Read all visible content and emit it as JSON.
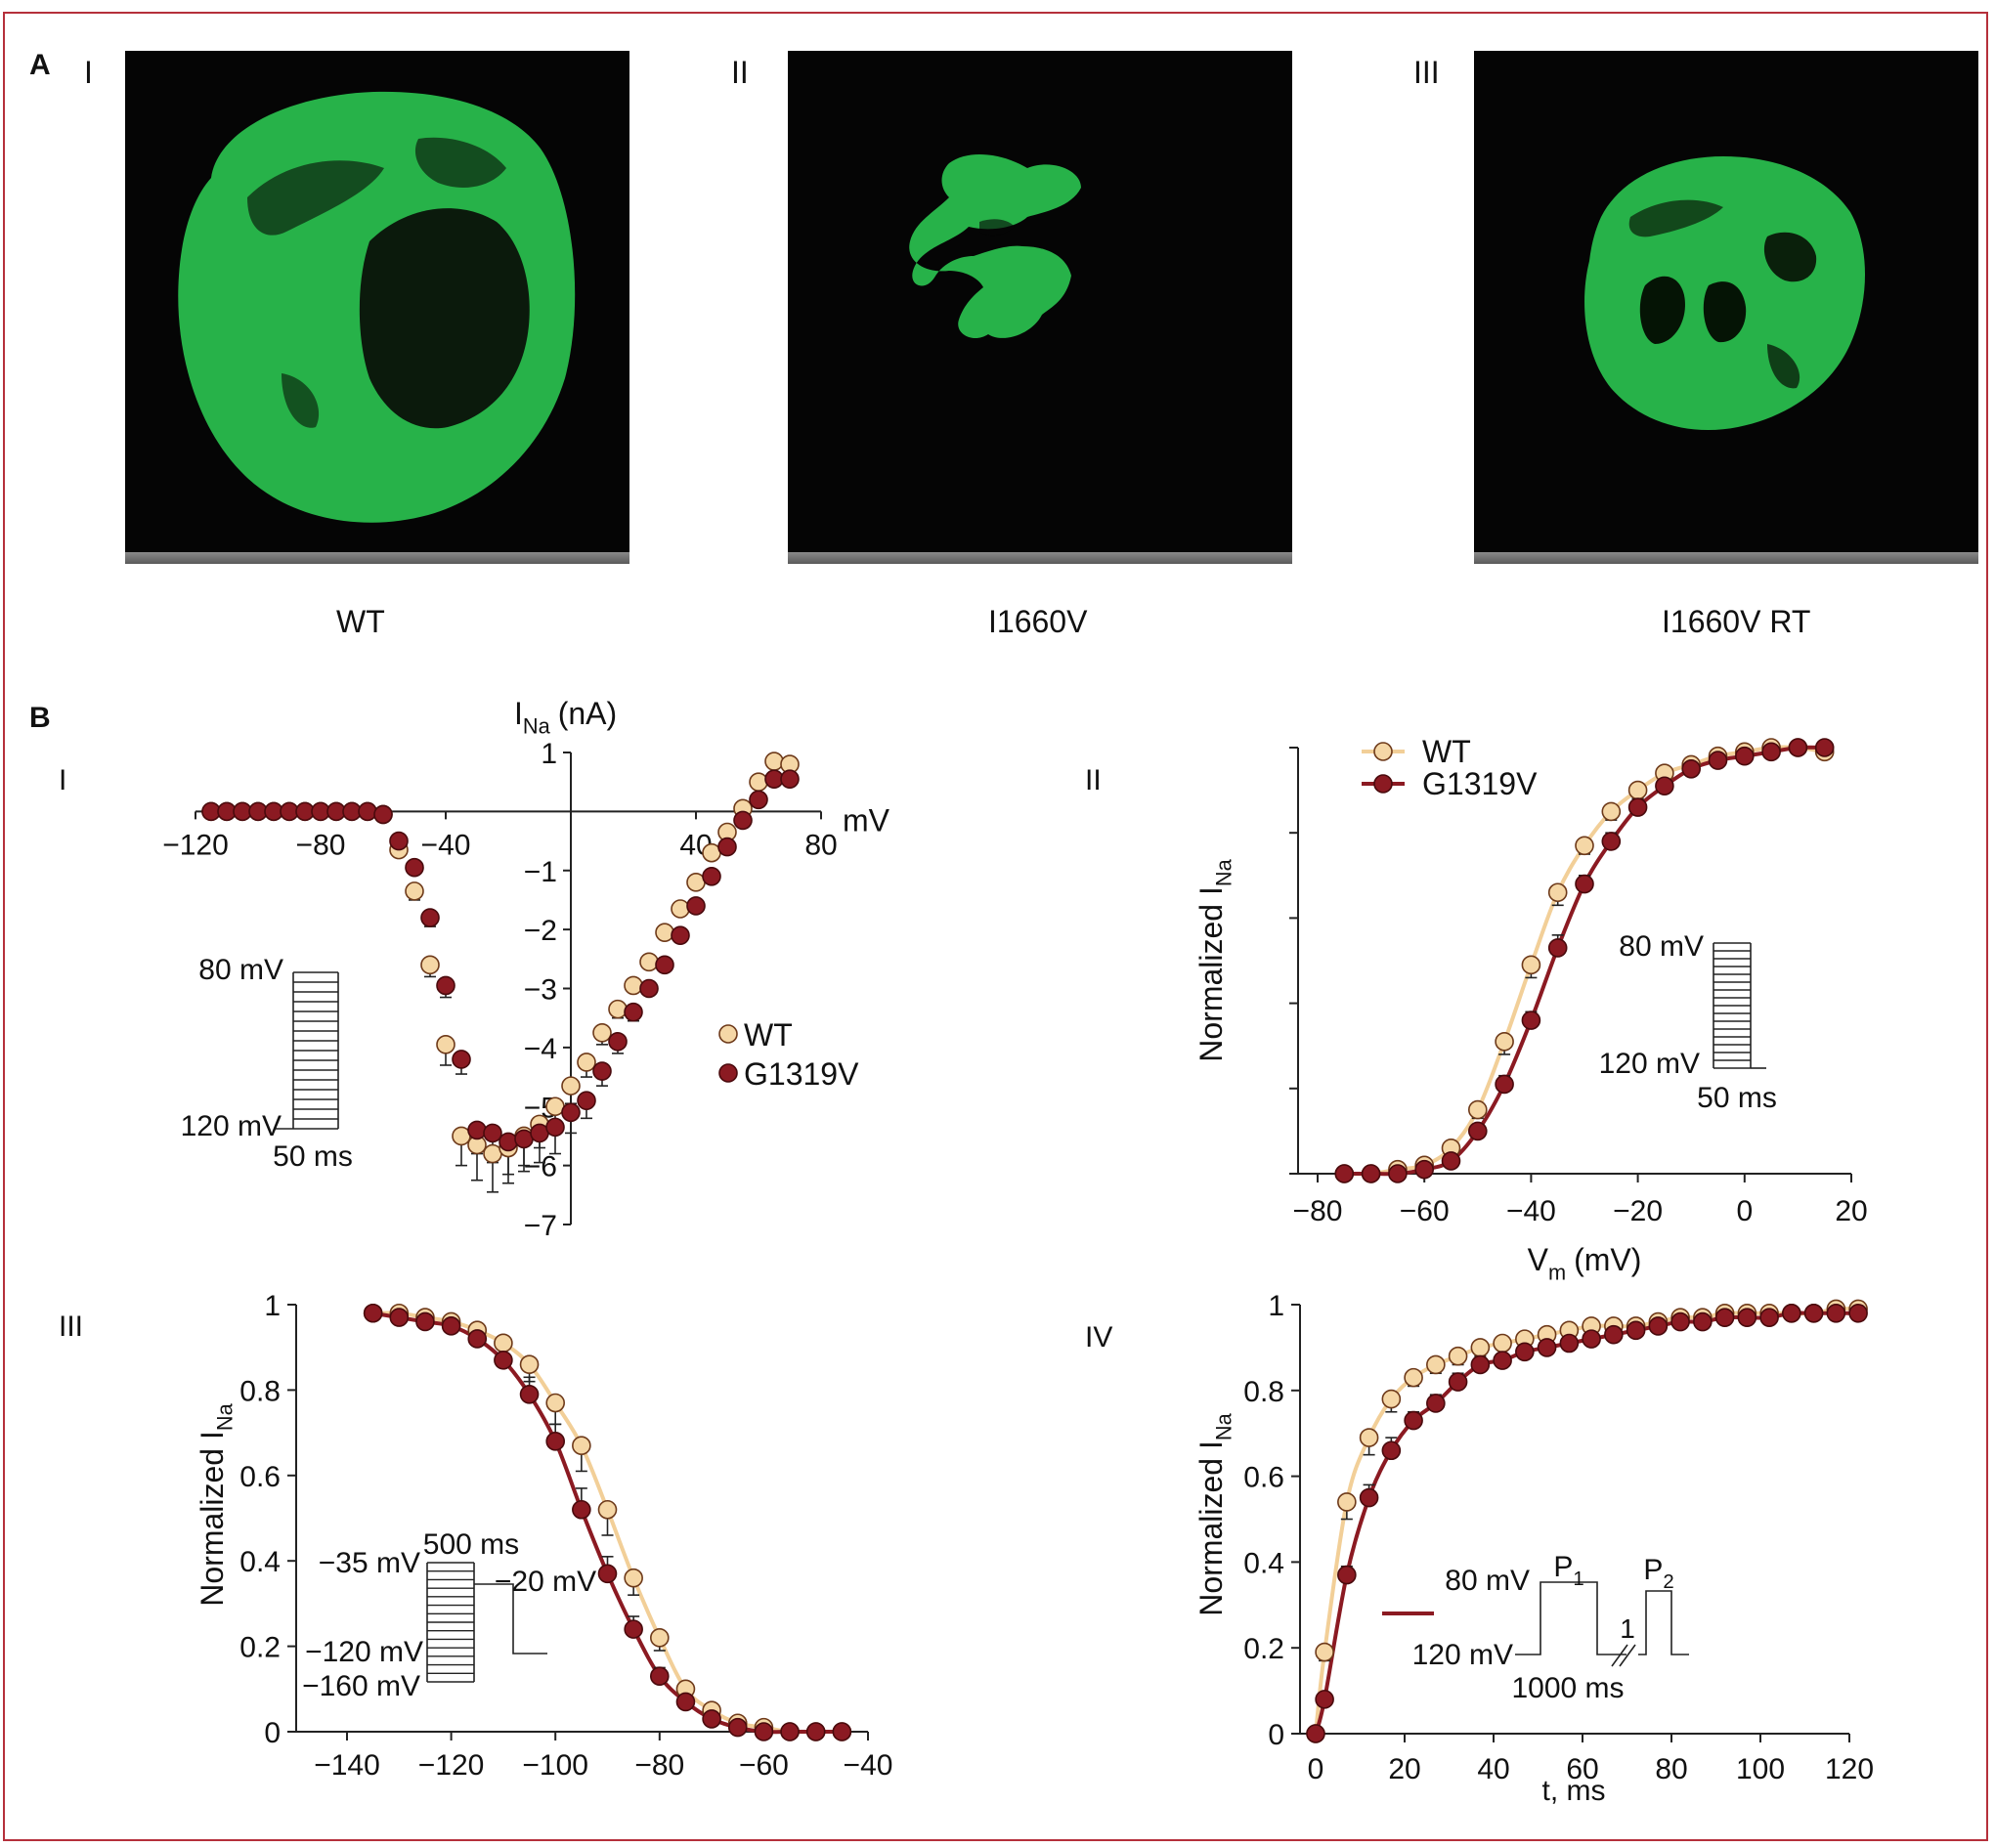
{
  "panel_letters": {
    "a": "A",
    "b": "B"
  },
  "micrographs": [
    {
      "roman": "I",
      "caption": "WT"
    },
    {
      "roman": "II",
      "caption": "I1660V"
    },
    {
      "roman": "III",
      "caption": "I1660V RT"
    }
  ],
  "colors": {
    "wt": "#f5d7a6",
    "wt_edge": "#6e3a1a",
    "wt_line": "#f2cf98",
    "g1319v": "#8b1a22",
    "g1319v_edge": "#4a0a0d",
    "fluor": "#27b249",
    "frame": "#b5303b"
  },
  "chart_data": [
    {
      "id": "BI",
      "type": "scatter",
      "panel": "I",
      "title": "",
      "xlabel": "mV",
      "ylabel": "I",
      "ylabel_sub": "Na",
      "ylabel_unit": "(nA)",
      "xlim": [
        -120,
        80
      ],
      "ylim": [
        -7,
        1
      ],
      "xticks": [
        -120,
        -80,
        -40,
        40,
        80
      ],
      "xticklabels": [
        "−120",
        "−80",
        "−40",
        "40",
        "80"
      ],
      "yticks": [
        1,
        -1,
        -2,
        -3,
        -4,
        -5,
        -6,
        -7
      ],
      "yticklabels": [
        "1",
        "−1",
        "−2",
        "−3",
        "−4",
        "−5",
        "−6",
        "−7"
      ],
      "legend": [
        "WT",
        "G1319V"
      ],
      "legend_position": "center-right",
      "protocol": {
        "top": "80 mV",
        "bottom": "120 mV",
        "duration": "50 ms"
      },
      "series": [
        {
          "name": "WT",
          "x": [
            -115,
            -110,
            -105,
            -100,
            -95,
            -90,
            -85,
            -80,
            -75,
            -70,
            -65,
            -60,
            -55,
            -50,
            -45,
            -40,
            -35,
            -30,
            -25,
            -20,
            -15,
            -10,
            -5,
            0,
            5,
            10,
            15,
            20,
            25,
            30,
            35,
            40,
            45,
            50,
            55,
            60,
            65,
            70
          ],
          "y": [
            0,
            0,
            0,
            0,
            0,
            0,
            0,
            0,
            0,
            0,
            0,
            -0.05,
            -0.65,
            -1.35,
            -2.6,
            -3.95,
            -5.5,
            -5.65,
            -5.8,
            -5.7,
            -5.5,
            -5.3,
            -5.0,
            -4.65,
            -4.25,
            -3.75,
            -3.35,
            -2.95,
            -2.55,
            -2.05,
            -1.65,
            -1.2,
            -0.7,
            -0.35,
            0.05,
            0.5,
            0.85,
            0.8
          ],
          "err": [
            0,
            0,
            0,
            0,
            0,
            0,
            0,
            0,
            0,
            0,
            0,
            0,
            0.1,
            0.15,
            0.2,
            0.35,
            0.5,
            0.6,
            0.65,
            0.6,
            0.5,
            0.4,
            0.35,
            0.3,
            0.25,
            0.2,
            0.15,
            0.1,
            0.1,
            0.1,
            0.1,
            0.1,
            0.1,
            0.05,
            0.05,
            0.05,
            0.05,
            0.05
          ]
        },
        {
          "name": "G1319V",
          "x": [
            -115,
            -110,
            -105,
            -100,
            -95,
            -90,
            -85,
            -80,
            -75,
            -70,
            -65,
            -60,
            -55,
            -50,
            -45,
            -40,
            -35,
            -30,
            -25,
            -20,
            -15,
            -10,
            -5,
            0,
            5,
            10,
            15,
            20,
            25,
            30,
            35,
            40,
            45,
            50,
            55,
            60,
            65,
            70
          ],
          "y": [
            0,
            0,
            0,
            0,
            0,
            0,
            0,
            0,
            0,
            0,
            0,
            -0.05,
            -0.5,
            -0.95,
            -1.8,
            -2.95,
            -4.2,
            -5.4,
            -5.45,
            -5.6,
            -5.55,
            -5.45,
            -5.35,
            -5.1,
            -4.9,
            -4.4,
            -3.9,
            -3.4,
            -3.0,
            -2.6,
            -2.1,
            -1.6,
            -1.1,
            -0.6,
            -0.15,
            0.2,
            0.55,
            0.55
          ],
          "err": [
            0,
            0,
            0,
            0,
            0,
            0,
            0,
            0,
            0,
            0,
            0,
            0,
            0.1,
            0.1,
            0.15,
            0.2,
            0.25,
            0.4,
            0.5,
            0.55,
            0.55,
            0.5,
            0.45,
            0.35,
            0.3,
            0.25,
            0.2,
            0.15,
            0.1,
            0.1,
            0.1,
            0.1,
            0.1,
            0.05,
            0.05,
            0.05,
            0.05,
            0.05
          ]
        }
      ]
    },
    {
      "id": "BII",
      "type": "scatter",
      "panel": "II",
      "title": "",
      "xlabel": "V",
      "xlabel_sub": "m",
      "xlabel_unit": "(mV)",
      "ylabel": "Normalized I",
      "ylabel_sub": "Na",
      "xlim": [
        -80,
        20
      ],
      "ylim": [
        0,
        1
      ],
      "xticks": [
        -80,
        -60,
        -40,
        -20,
        0,
        20
      ],
      "xticklabels": [
        "−80",
        "−60",
        "−40",
        "−20",
        "0",
        "20"
      ],
      "yticks": [
        0,
        0.2,
        0.4,
        0.6,
        0.8,
        1
      ],
      "yticklabels": [],
      "legend": [
        "WT",
        "G1319V"
      ],
      "legend_position": "top-left",
      "protocol": {
        "top": "80 mV",
        "bottom": "120 mV",
        "duration": "50 ms"
      },
      "series": [
        {
          "name": "WT",
          "x": [
            -75,
            -70,
            -65,
            -60,
            -55,
            -50,
            -45,
            -40,
            -35,
            -30,
            -25,
            -20,
            -15,
            -10,
            -5,
            0,
            5,
            10,
            15
          ],
          "y": [
            0,
            0,
            0.01,
            0.02,
            0.06,
            0.15,
            0.31,
            0.49,
            0.66,
            0.77,
            0.85,
            0.9,
            0.94,
            0.96,
            0.98,
            0.99,
            1.0,
            1.0,
            0.99
          ],
          "err": [
            0,
            0,
            0,
            0.01,
            0.01,
            0.02,
            0.03,
            0.03,
            0.03,
            0.02,
            0.02,
            0.02,
            0.01,
            0.01,
            0.01,
            0.01,
            0.01,
            0.01,
            0.01
          ],
          "fit": true
        },
        {
          "name": "G1319V",
          "x": [
            -75,
            -70,
            -65,
            -60,
            -55,
            -50,
            -45,
            -40,
            -35,
            -30,
            -25,
            -20,
            -15,
            -10,
            -5,
            0,
            5,
            10,
            15
          ],
          "y": [
            0,
            0,
            0,
            0.01,
            0.03,
            0.1,
            0.21,
            0.36,
            0.53,
            0.68,
            0.78,
            0.86,
            0.91,
            0.95,
            0.97,
            0.98,
            0.99,
            1.0,
            1.0
          ],
          "err": [
            0,
            0,
            0,
            0,
            0.01,
            0.01,
            0.02,
            0.02,
            0.03,
            0.02,
            0.02,
            0.02,
            0.01,
            0.01,
            0.01,
            0.01,
            0.01,
            0.01,
            0.01
          ],
          "fit": true
        }
      ]
    },
    {
      "id": "BIII",
      "type": "scatter",
      "panel": "III",
      "title": "",
      "xlabel": "",
      "ylabel": "Normalized I",
      "ylabel_sub": "Na",
      "xlim": [
        -140,
        -40
      ],
      "ylim": [
        0,
        1
      ],
      "xticks": [
        -140,
        -120,
        -100,
        -80,
        -60,
        -40
      ],
      "xticklabels": [
        "−140",
        "−120",
        "−100",
        "−80",
        "−60",
        "−40"
      ],
      "yticks": [
        0,
        0.2,
        0.4,
        0.6,
        0.8,
        1
      ],
      "yticklabels": [
        "0",
        "0.2",
        "0.4",
        "0.6",
        "0.8",
        "1"
      ],
      "protocol": {
        "top": "−35 mV",
        "duration": "500 ms",
        "test": "−20 mV",
        "mid": "−120 mV",
        "bottom": "−160 mV"
      },
      "series": [
        {
          "name": "WT",
          "x": [
            -135,
            -130,
            -125,
            -120,
            -115,
            -110,
            -105,
            -100,
            -95,
            -90,
            -85,
            -80,
            -75,
            -70,
            -65,
            -60,
            -55,
            -50,
            -45
          ],
          "y": [
            0.98,
            0.98,
            0.97,
            0.96,
            0.94,
            0.91,
            0.86,
            0.77,
            0.67,
            0.52,
            0.36,
            0.22,
            0.1,
            0.05,
            0.02,
            0.01,
            0,
            0,
            0
          ],
          "err": [
            0.01,
            0.01,
            0.01,
            0.02,
            0.02,
            0.03,
            0.04,
            0.05,
            0.06,
            0.06,
            0.04,
            0.03,
            0.02,
            0.01,
            0.01,
            0,
            0,
            0,
            0
          ],
          "fit": true
        },
        {
          "name": "G1319V",
          "x": [
            -135,
            -130,
            -125,
            -120,
            -115,
            -110,
            -105,
            -100,
            -95,
            -90,
            -85,
            -80,
            -75,
            -70,
            -65,
            -60,
            -55,
            -50,
            -45
          ],
          "y": [
            0.98,
            0.97,
            0.96,
            0.95,
            0.92,
            0.87,
            0.79,
            0.68,
            0.52,
            0.37,
            0.24,
            0.13,
            0.07,
            0.03,
            0.01,
            0,
            0,
            0,
            0
          ],
          "err": [
            0.01,
            0.01,
            0.01,
            0.01,
            0.02,
            0.03,
            0.04,
            0.04,
            0.05,
            0.04,
            0.03,
            0.02,
            0.01,
            0.01,
            0,
            0,
            0,
            0,
            0
          ],
          "fit": true
        }
      ]
    },
    {
      "id": "BIV",
      "type": "scatter",
      "panel": "IV",
      "title": "",
      "xlabel": "t, ms",
      "ylabel": "Normalized I",
      "ylabel_sub": "Na",
      "xlim": [
        0,
        120
      ],
      "ylim": [
        0,
        1
      ],
      "xticks": [
        0,
        20,
        40,
        60,
        80,
        100,
        120
      ],
      "xticklabels": [
        "0",
        "20",
        "40",
        "60",
        "80",
        "100",
        "120"
      ],
      "yticks": [
        0,
        0.2,
        0.4,
        0.6,
        0.8,
        1
      ],
      "yticklabels": [
        "0",
        "0.2",
        "0.4",
        "0.6",
        "0.8",
        "1"
      ],
      "protocol": {
        "top": "80 mV",
        "bottom": "120 mV",
        "duration": "1000 ms",
        "p1": "P",
        "p1_sub": "1",
        "p2": "P",
        "p2_sub": "2",
        "interval": "1"
      },
      "series": [
        {
          "name": "WT",
          "x": [
            0,
            2,
            7,
            12,
            17,
            22,
            27,
            32,
            37,
            42,
            47,
            52,
            57,
            62,
            67,
            72,
            77,
            82,
            87,
            92,
            97,
            102,
            107,
            112,
            117,
            122
          ],
          "y": [
            0,
            0.19,
            0.54,
            0.69,
            0.78,
            0.83,
            0.86,
            0.88,
            0.9,
            0.91,
            0.92,
            0.93,
            0.94,
            0.95,
            0.95,
            0.95,
            0.96,
            0.97,
            0.97,
            0.98,
            0.98,
            0.98,
            0.98,
            0.98,
            0.99,
            0.99
          ],
          "err": [
            0,
            0.02,
            0.04,
            0.04,
            0.03,
            0.02,
            0.02,
            0.02,
            0.02,
            0.01,
            0.01,
            0.01,
            0.01,
            0.01,
            0.01,
            0.01,
            0.01,
            0.01,
            0.01,
            0.01,
            0.01,
            0.01,
            0.01,
            0.01,
            0.01,
            0.01
          ],
          "fit": true
        },
        {
          "name": "G1319V",
          "x": [
            0,
            2,
            7,
            12,
            17,
            22,
            27,
            32,
            37,
            42,
            47,
            52,
            57,
            62,
            67,
            72,
            77,
            82,
            87,
            92,
            97,
            102,
            107,
            112,
            117,
            122
          ],
          "y": [
            0,
            0.08,
            0.37,
            0.55,
            0.66,
            0.73,
            0.77,
            0.82,
            0.86,
            0.87,
            0.89,
            0.9,
            0.91,
            0.92,
            0.93,
            0.94,
            0.95,
            0.96,
            0.96,
            0.97,
            0.97,
            0.97,
            0.98,
            0.98,
            0.98,
            0.98
          ],
          "err": [
            0,
            0.01,
            0.02,
            0.03,
            0.03,
            0.02,
            0.02,
            0.02,
            0.01,
            0.01,
            0.01,
            0.01,
            0.01,
            0.01,
            0.01,
            0.01,
            0.01,
            0.01,
            0.01,
            0.01,
            0.01,
            0.01,
            0.01,
            0.01,
            0.01,
            0.01
          ],
          "fit": true
        }
      ]
    }
  ]
}
